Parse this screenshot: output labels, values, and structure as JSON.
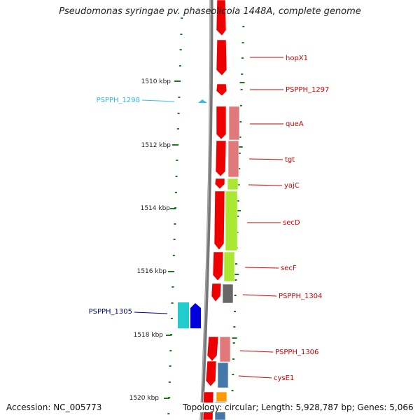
{
  "title": "Pseudomonas syringae pv. phaseolicola 1448A, complete genome",
  "footer": {
    "accession": "Accession: NC_005773",
    "summary": "Topology: circular; Length: 5,928,787 bp; Genes: 5,066"
  },
  "scale_labels": [
    "1510 kbp",
    "1512 kbp",
    "1514 kbp",
    "1516 kbp",
    "1518 kbp",
    "1520 kbp"
  ],
  "gene_labels": [
    {
      "text": "hopX1",
      "color": "#cc0000"
    },
    {
      "text": "PSPPH_1297",
      "color": "#cc0000"
    },
    {
      "text": "queA",
      "color": "#cc0000"
    },
    {
      "text": "tgt",
      "color": "#cc0000"
    },
    {
      "text": "yajC",
      "color": "#cc0000"
    },
    {
      "text": "secD",
      "color": "#cc0000"
    },
    {
      "text": "secF",
      "color": "#cc0000"
    },
    {
      "text": "PSPPH_1304",
      "color": "#cc0000"
    },
    {
      "text": "PSPPH_1306",
      "color": "#cc0000"
    },
    {
      "text": "cysE1",
      "color": "#cc0000"
    },
    {
      "text": "PSPPH_1298",
      "color": "#33bbee"
    },
    {
      "text": "PSPPH_1305",
      "color": "#000099"
    }
  ],
  "colors": {
    "forward_gene": "#ee0000",
    "backbone": "#777777",
    "scale_ticks": "#1a7a1a",
    "cog_pink": "#e07a7a",
    "cog_lime": "#a8e830",
    "cog_gray": "#666666",
    "cog_steelblue": "#4477aa",
    "cog_orange": "#ff9900",
    "reverse_cyan": "#22cccc",
    "reverse_blue": "#0000dd"
  }
}
